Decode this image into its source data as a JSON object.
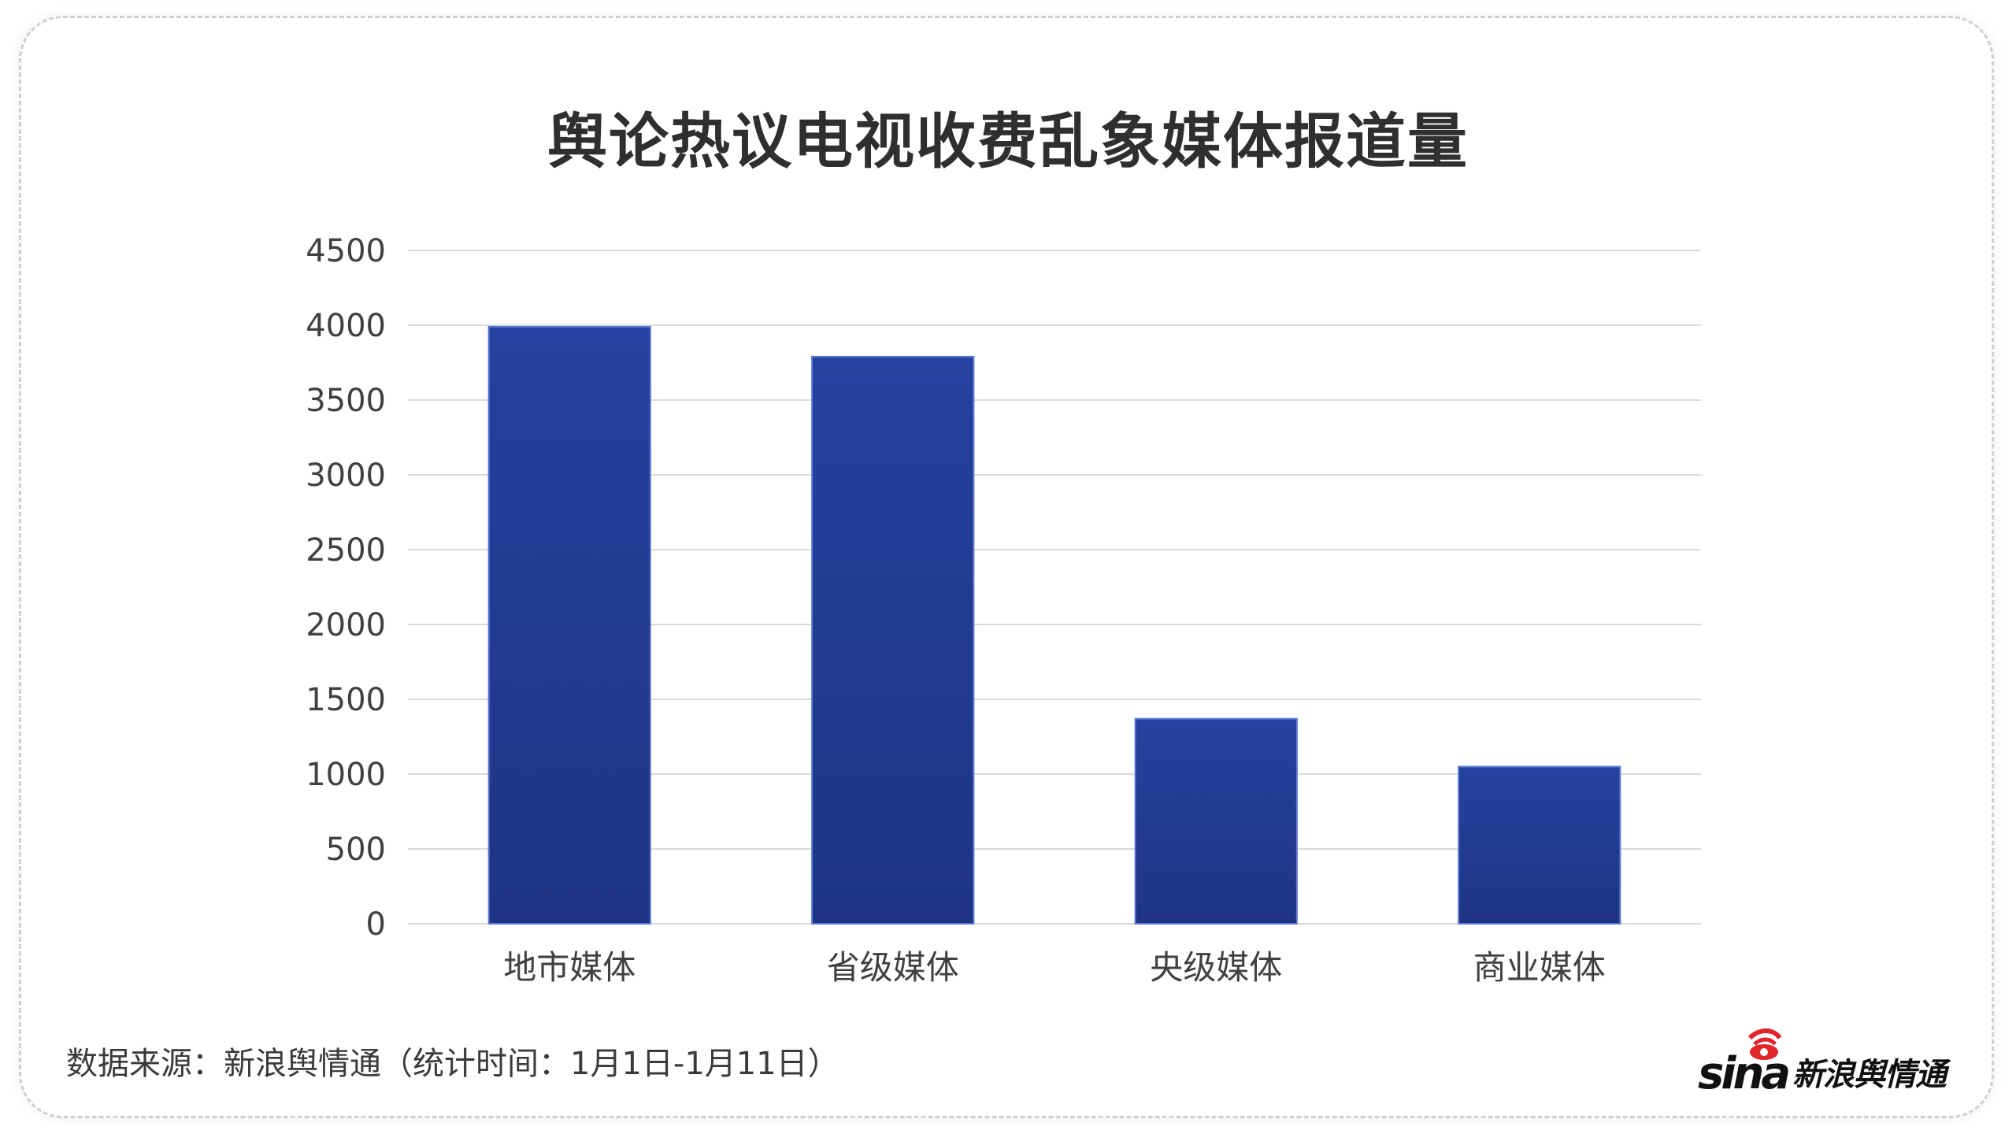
{
  "chart_data": {
    "type": "bar",
    "title": "舆论热议电视收费乱象媒体报道量",
    "categories": [
      "地市媒体",
      "省级媒体",
      "央级媒体",
      "商业媒体"
    ],
    "values": [
      3990,
      3790,
      1370,
      1050
    ],
    "yticks": [
      0,
      500,
      1000,
      1500,
      2000,
      2500,
      3000,
      3500,
      4000,
      4500
    ],
    "ylim": [
      0,
      4500
    ],
    "xlabel": "",
    "ylabel": "",
    "grid": true,
    "bar_color_top": "#2542a0",
    "bar_color_bottom": "#1f3483"
  },
  "footer": {
    "source": "数据来源：新浪舆情通（统计时间：1月1日-1月11日）",
    "brand_logo": "sina",
    "brand_name": "新浪舆情通"
  }
}
